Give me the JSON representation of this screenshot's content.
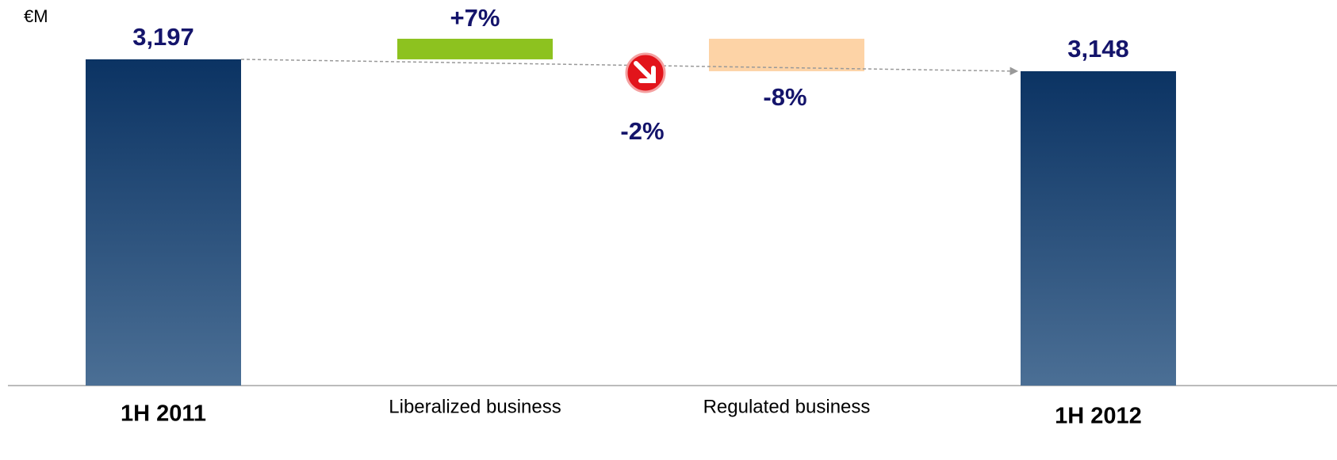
{
  "chart_data": {
    "type": "waterfall",
    "unit": "€M",
    "categories": [
      "1H 2011",
      "Liberalized business",
      "Regulated  business",
      "1H 2012"
    ],
    "values": [
      3197,
      85,
      -134,
      3148
    ],
    "value_labels": [
      "3,197",
      null,
      null,
      "3,148"
    ],
    "totals": [
      true,
      false,
      false,
      true
    ],
    "colors": [
      "total",
      "#8dc21f",
      "#fdd3a6",
      "total"
    ],
    "change_labels": [
      "+7%",
      "-8%"
    ],
    "total_change": "-2%",
    "ylim": [
      1850,
      3442
    ]
  }
}
